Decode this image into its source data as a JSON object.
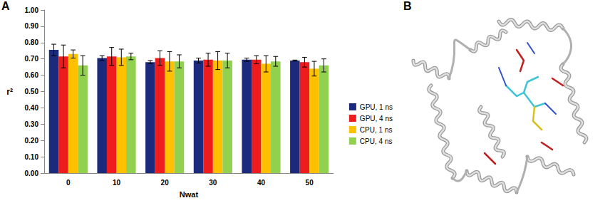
{
  "chart_data": {
    "type": "bar",
    "x_label": "Nwat",
    "y_label": "r²",
    "categories": [
      "0",
      "10",
      "20",
      "30",
      "40",
      "50"
    ],
    "series": [
      {
        "name": "GPU, 1 ns",
        "color": "#1b2a7c",
        "values": [
          0.755,
          0.705,
          0.68,
          0.69,
          0.695,
          0.69
        ],
        "error": [
          0.035,
          0.015,
          0.01,
          0.015,
          0.01,
          0.003
        ]
      },
      {
        "name": "GPU, 4 ns",
        "color": "#ee1c1c",
        "values": [
          0.715,
          0.715,
          0.705,
          0.695,
          0.695,
          0.68
        ],
        "error": [
          0.07,
          0.055,
          0.045,
          0.04,
          0.025,
          0.03
        ]
      },
      {
        "name": "CPU, 1 ns",
        "color": "#ffc000",
        "values": [
          0.73,
          0.71,
          0.685,
          0.69,
          0.67,
          0.64
        ],
        "error": [
          0.025,
          0.05,
          0.06,
          0.055,
          0.05,
          0.045
        ]
      },
      {
        "name": "CPU, 4 ns",
        "color": "#92d050",
        "values": [
          0.66,
          0.715,
          0.685,
          0.69,
          0.685,
          0.66
        ],
        "error": [
          0.06,
          0.02,
          0.04,
          0.045,
          0.03,
          0.04
        ]
      }
    ],
    "ylim": [
      0,
      1
    ],
    "yticks": [
      {
        "value": 0,
        "label": "0.00"
      },
      {
        "value": 0.1,
        "label": "0.10"
      },
      {
        "value": 0.2,
        "label": "0.20"
      },
      {
        "value": 0.3,
        "label": "0.30"
      },
      {
        "value": 0.4,
        "label": "0.40"
      },
      {
        "value": 0.5,
        "label": "0.50"
      },
      {
        "value": 0.6,
        "label": "0.60"
      },
      {
        "value": 0.7,
        "label": "0.70"
      },
      {
        "value": 0.8,
        "label": "0.80"
      },
      {
        "value": 0.9,
        "label": "0.90"
      },
      {
        "value": 1,
        "label": "1.00"
      }
    ],
    "grid": false,
    "legend": "right"
  },
  "panel_labels": [
    "A",
    "B"
  ]
}
